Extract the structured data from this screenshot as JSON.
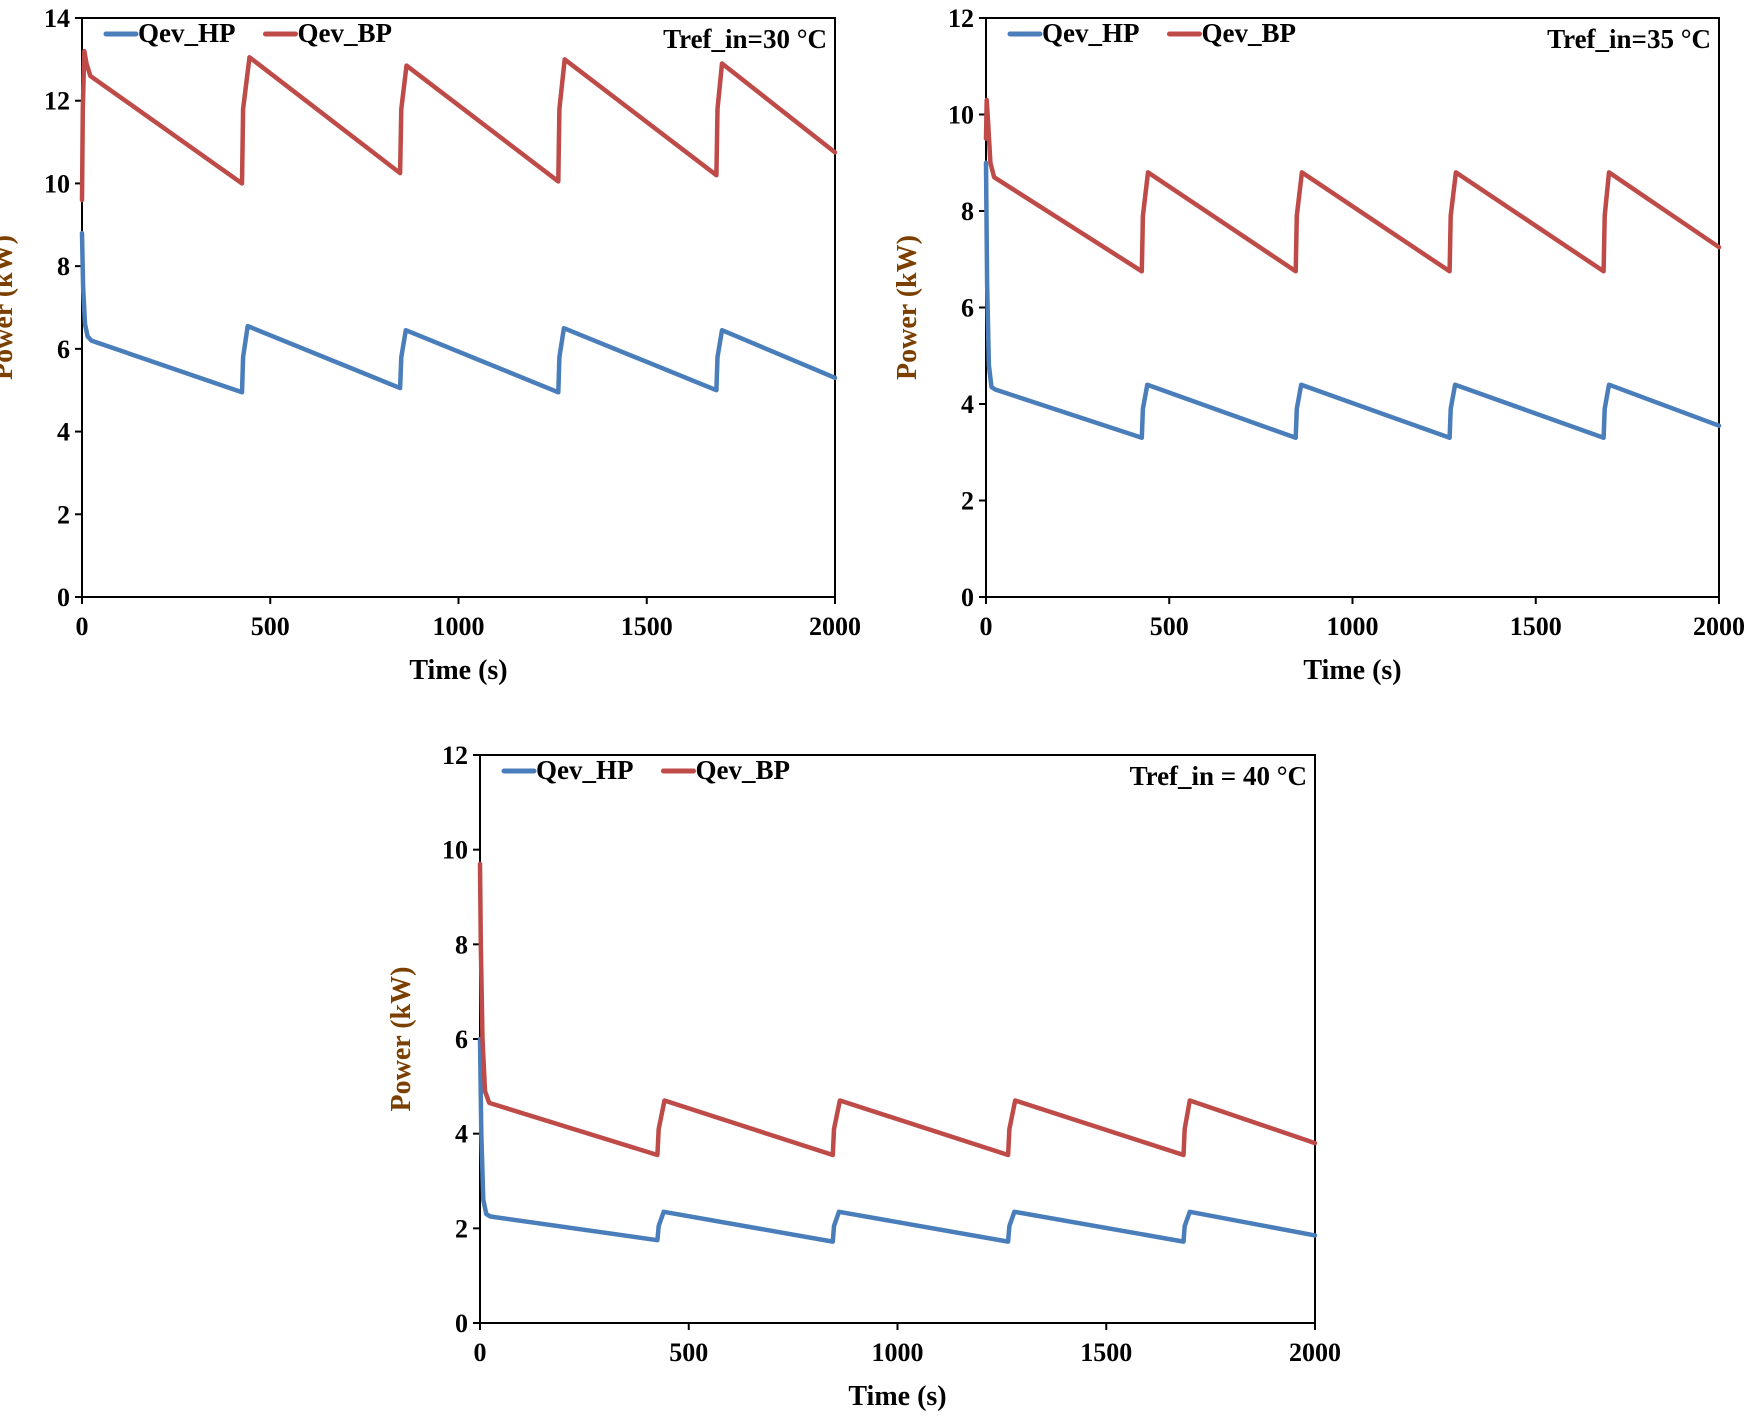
{
  "colors": {
    "hp": "#4a7ebb",
    "bp": "#be4b48",
    "ylabel": "#7b3f00",
    "axis": "#000000"
  },
  "chart_data": [
    {
      "type": "line",
      "title": "",
      "xlabel": "Time (s)",
      "ylabel": "Power (kW)",
      "xlim": [
        0,
        2000
      ],
      "ylim": [
        0,
        14
      ],
      "xticks": [
        0,
        500,
        1000,
        1500,
        2000
      ],
      "yticks": [
        0,
        2,
        4,
        6,
        8,
        10,
        12,
        14
      ],
      "annotation": "Tref_in=30 °C",
      "legend_position": "top-left",
      "series": [
        {
          "name": "Qev_HP",
          "color": "#4a7ebb",
          "x": [
            0,
            3,
            8,
            15,
            25,
            425,
            428,
            440,
            845,
            848,
            860,
            1265,
            1268,
            1280,
            1685,
            1688,
            1700,
            2000
          ],
          "y": [
            8.8,
            7.5,
            6.6,
            6.3,
            6.2,
            4.95,
            5.8,
            6.55,
            5.05,
            5.8,
            6.45,
            4.95,
            5.8,
            6.5,
            5.0,
            5.8,
            6.45,
            5.3
          ]
        },
        {
          "name": "Qev_BP",
          "color": "#be4b48",
          "x": [
            0,
            2,
            6,
            12,
            22,
            425,
            428,
            445,
            845,
            848,
            862,
            1265,
            1268,
            1282,
            1685,
            1688,
            1700,
            2000
          ],
          "y": [
            9.6,
            11.8,
            13.2,
            12.9,
            12.6,
            10.0,
            11.8,
            13.05,
            10.25,
            11.8,
            12.85,
            10.05,
            11.8,
            13.0,
            10.2,
            11.8,
            12.9,
            10.75
          ]
        }
      ]
    },
    {
      "type": "line",
      "title": "",
      "xlabel": "Time (s)",
      "ylabel": "Power (kW)",
      "xlim": [
        0,
        2000
      ],
      "ylim": [
        0,
        12
      ],
      "xticks": [
        0,
        500,
        1000,
        1500,
        2000
      ],
      "yticks": [
        0,
        2,
        4,
        6,
        8,
        10,
        12
      ],
      "annotation": "Tref_in=35 °C",
      "legend_position": "top-left",
      "series": [
        {
          "name": "Qev_HP",
          "color": "#4a7ebb",
          "x": [
            0,
            3,
            8,
            15,
            25,
            425,
            428,
            440,
            845,
            848,
            860,
            1265,
            1268,
            1280,
            1685,
            1688,
            1700,
            2000
          ],
          "y": [
            9.0,
            6.5,
            4.8,
            4.35,
            4.3,
            3.3,
            3.9,
            4.4,
            3.3,
            3.9,
            4.4,
            3.3,
            3.9,
            4.4,
            3.3,
            3.9,
            4.4,
            3.55
          ]
        },
        {
          "name": "Qev_BP",
          "color": "#be4b48",
          "x": [
            0,
            2,
            6,
            12,
            22,
            425,
            428,
            442,
            845,
            848,
            862,
            1265,
            1268,
            1282,
            1685,
            1688,
            1700,
            2000
          ],
          "y": [
            9.5,
            10.3,
            9.8,
            9.0,
            8.7,
            6.75,
            7.9,
            8.8,
            6.75,
            7.9,
            8.8,
            6.75,
            7.9,
            8.8,
            6.75,
            7.9,
            8.8,
            7.25
          ]
        }
      ]
    },
    {
      "type": "line",
      "title": "",
      "xlabel": "Time (s)",
      "ylabel": "Power (kW)",
      "xlim": [
        0,
        2000
      ],
      "ylim": [
        0,
        12
      ],
      "xticks": [
        0,
        500,
        1000,
        1500,
        2000
      ],
      "yticks": [
        0,
        2,
        4,
        6,
        8,
        10,
        12
      ],
      "annotation": "Tref_in = 40 °C",
      "legend_position": "top-left",
      "series": [
        {
          "name": "Qev_HP",
          "color": "#4a7ebb",
          "x": [
            0,
            3,
            8,
            15,
            25,
            425,
            428,
            440,
            845,
            848,
            860,
            1265,
            1268,
            1280,
            1685,
            1688,
            1700,
            2000
          ],
          "y": [
            6.0,
            4.0,
            2.6,
            2.3,
            2.25,
            1.75,
            2.05,
            2.35,
            1.72,
            2.05,
            2.35,
            1.72,
            2.05,
            2.35,
            1.72,
            2.05,
            2.35,
            1.85
          ]
        },
        {
          "name": "Qev_BP",
          "color": "#be4b48",
          "x": [
            0,
            2,
            6,
            12,
            22,
            425,
            428,
            442,
            845,
            848,
            862,
            1265,
            1268,
            1282,
            1685,
            1688,
            1700,
            2000
          ],
          "y": [
            9.7,
            8.0,
            6.0,
            4.9,
            4.65,
            3.55,
            4.1,
            4.7,
            3.55,
            4.1,
            4.7,
            3.55,
            4.1,
            4.7,
            3.55,
            4.1,
            4.7,
            3.8
          ]
        }
      ]
    }
  ]
}
